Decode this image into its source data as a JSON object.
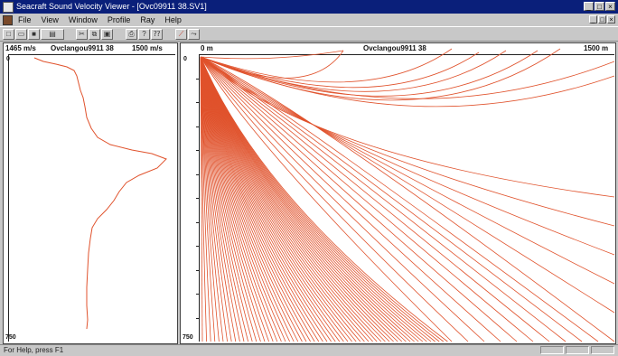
{
  "window": {
    "title": "Seacraft Sound Velocity Viewer - [Ovc09911 38.SV1]",
    "min_label": "_",
    "max_label": "□",
    "close_label": "×"
  },
  "menu": {
    "items": [
      "File",
      "View",
      "Window",
      "Profile",
      "Ray",
      "Help"
    ],
    "mdi_min": "_",
    "mdi_max": "□",
    "mdi_close": "×"
  },
  "toolbar": {
    "buttons": [
      {
        "name": "new-file-icon",
        "glyph": "□"
      },
      {
        "name": "open-file-icon",
        "glyph": "▭"
      },
      {
        "name": "save-icon",
        "glyph": "■"
      },
      {
        "name": "print-preview-icon",
        "glyph": "▤"
      },
      {
        "name": "cut-icon",
        "glyph": "✂"
      },
      {
        "name": "copy-icon",
        "glyph": "⧉"
      },
      {
        "name": "paste-icon",
        "glyph": "▣"
      },
      {
        "name": "print-icon",
        "glyph": "⎙"
      },
      {
        "name": "help-icon",
        "glyph": "?"
      },
      {
        "name": "context-help-icon",
        "glyph": "⁇"
      },
      {
        "name": "profile-tool-icon",
        "glyph": "⟋"
      },
      {
        "name": "ray-tool-icon",
        "glyph": "⤳"
      }
    ]
  },
  "profile_panel": {
    "min_velocity": "1465 m/s",
    "title": "Ovclangou9911 38",
    "max_velocity": "1500 m/s",
    "depth_top": "0",
    "depth_bottom": "750"
  },
  "ray_panel": {
    "range_start": "0 m",
    "title": "Ovclangou9911 38",
    "range_end": "1500 m",
    "depth_top": "0",
    "depth_bottom": "750"
  },
  "colors": {
    "curve": "#e0522c",
    "titlebar": "#0a1f7a"
  },
  "status": {
    "message": "For Help, press F1"
  }
}
